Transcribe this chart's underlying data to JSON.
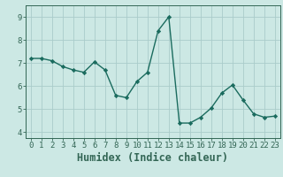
{
  "x": [
    0,
    1,
    2,
    3,
    4,
    5,
    6,
    7,
    8,
    9,
    10,
    11,
    12,
    13,
    14,
    15,
    16,
    17,
    18,
    19,
    20,
    21,
    22,
    23
  ],
  "y": [
    7.2,
    7.2,
    7.1,
    6.85,
    6.7,
    6.6,
    7.05,
    6.7,
    5.6,
    5.5,
    6.2,
    6.6,
    8.4,
    9.0,
    4.4,
    4.4,
    4.65,
    5.05,
    5.7,
    6.05,
    5.4,
    4.8,
    4.65,
    4.7
  ],
  "line_color": "#1a6b5e",
  "marker": "D",
  "marker_size": 2.2,
  "bg_color": "#cce8e4",
  "grid_color": "#aaccca",
  "axis_color": "#336655",
  "xlabel": "Humidex (Indice chaleur)",
  "xlim": [
    -0.5,
    23.5
  ],
  "ylim": [
    3.75,
    9.5
  ],
  "yticks": [
    4,
    5,
    6,
    7,
    8,
    9
  ],
  "xticks": [
    0,
    1,
    2,
    3,
    4,
    5,
    6,
    7,
    8,
    9,
    10,
    11,
    12,
    13,
    14,
    15,
    16,
    17,
    18,
    19,
    20,
    21,
    22,
    23
  ],
  "tick_fontsize": 6.5,
  "xlabel_fontsize": 8.5,
  "linewidth": 1.0
}
